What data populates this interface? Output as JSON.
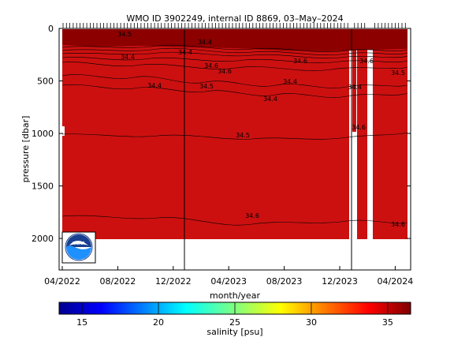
{
  "chart_data": {
    "type": "heatmap",
    "title": "WMO ID 3902249, internal ID 8869, 03–May–2024",
    "xlabel": "month/year",
    "ylabel": "pressure [dbar]",
    "x_ticks": [
      "04/2022",
      "08/2022",
      "12/2022",
      "04/2023",
      "08/2023",
      "12/2023",
      "04/2024"
    ],
    "y_ticks": [
      "0",
      "500",
      "1000",
      "1500",
      "2000"
    ],
    "x_range": [
      "2022-04",
      "2024-05"
    ],
    "ylim": [
      2300,
      0
    ],
    "colorbar": {
      "label": "salinity [psu]",
      "ticks": [
        "15",
        "20",
        "25",
        "30",
        "35"
      ],
      "range": [
        13.5,
        36.5
      ]
    },
    "contour_labels": [
      "34.4",
      "34.4",
      "34.4",
      "34.4",
      "34.5",
      "34.4",
      "34.5",
      "34.6",
      "34.6",
      "34.6",
      "34.4",
      "34.6",
      "34.5",
      "34.4",
      "34.6",
      "34.5",
      "34.6",
      "34.6"
    ],
    "profile_gaps": [
      "2022-12",
      "2023-12"
    ]
  },
  "colors": {
    "field": "#cc1010",
    "field_dark": "#8c0000",
    "colormap": [
      "#00008f",
      "#0000ff",
      "#0080ff",
      "#00ffff",
      "#80ff80",
      "#ffff00",
      "#ff8000",
      "#ff0000",
      "#800000"
    ]
  },
  "icons": {
    "logo": "noaa-logo"
  }
}
